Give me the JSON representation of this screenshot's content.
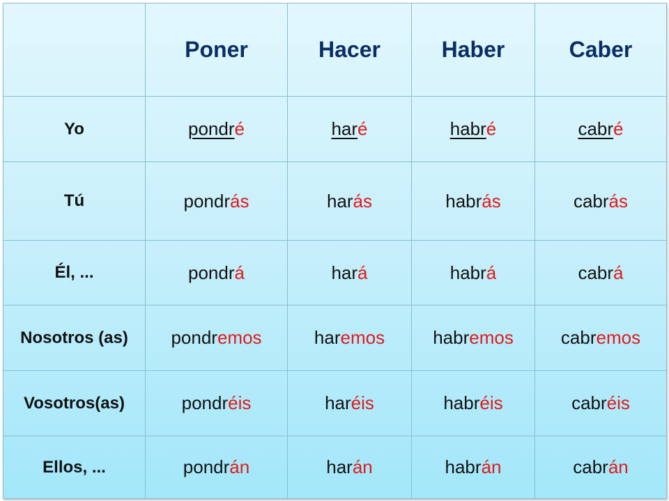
{
  "colors": {
    "header_text": "#0c2d63",
    "ending_text": "#e01b1b",
    "stem_text": "#111111",
    "border": "#86bfcf"
  },
  "headers": [
    "",
    "Poner",
    "Hacer",
    "Haber",
    "Caber"
  ],
  "rows": [
    {
      "pronoun": "Yo",
      "underline_stem": true,
      "cells": [
        {
          "stem": "pondr",
          "ending": "é"
        },
        {
          "stem": "har",
          "ending": "é"
        },
        {
          "stem": "habr",
          "ending": "é"
        },
        {
          "stem": "cabr",
          "ending": "é"
        }
      ]
    },
    {
      "pronoun": "Tú",
      "underline_stem": false,
      "cells": [
        {
          "stem": "pondr",
          "ending": "ás"
        },
        {
          "stem": "har",
          "ending": "ás"
        },
        {
          "stem": "habr",
          "ending": "ás"
        },
        {
          "stem": "cabr",
          "ending": "ás"
        }
      ]
    },
    {
      "pronoun": "Él, ...",
      "underline_stem": false,
      "cells": [
        {
          "stem": "pondr",
          "ending": "á"
        },
        {
          "stem": "har",
          "ending": "á"
        },
        {
          "stem": "habr",
          "ending": "á"
        },
        {
          "stem": "cabr",
          "ending": "á"
        }
      ]
    },
    {
      "pronoun": "Nosotros (as)",
      "underline_stem": false,
      "cells": [
        {
          "stem": "pondr",
          "ending": "emos"
        },
        {
          "stem": "har",
          "ending": "emos"
        },
        {
          "stem": "habr",
          "ending": "emos"
        },
        {
          "stem": "cabr",
          "ending": "emos"
        }
      ]
    },
    {
      "pronoun": "Vosotros(as)",
      "underline_stem": false,
      "cells": [
        {
          "stem": "pondr",
          "ending": "éis"
        },
        {
          "stem": "har",
          "ending": "éis"
        },
        {
          "stem": "habr",
          "ending": "éis"
        },
        {
          "stem": "cabr",
          "ending": "éis"
        }
      ]
    },
    {
      "pronoun": "Ellos, ...",
      "underline_stem": false,
      "cells": [
        {
          "stem": "pondr",
          "ending": "án"
        },
        {
          "stem": "har",
          "ending": "án"
        },
        {
          "stem": "habr",
          "ending": "án"
        },
        {
          "stem": "cabr",
          "ending": "án"
        }
      ]
    }
  ]
}
